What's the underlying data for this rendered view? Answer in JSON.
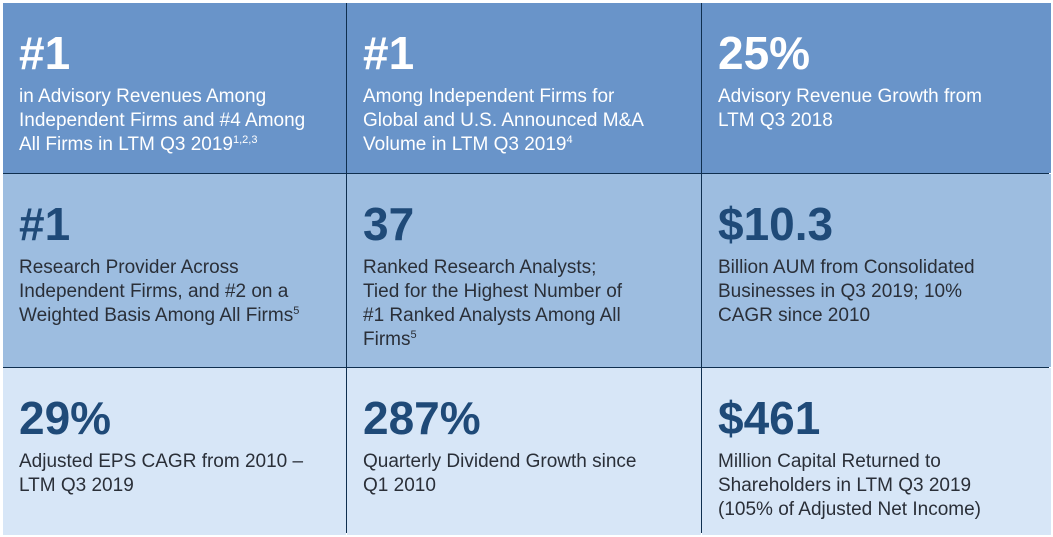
{
  "cells": [
    {
      "big": "#1",
      "desc": "in Advisory Revenues Among\nIndependent Firms and #4 Among\nAll Firms in LTM Q3 2019",
      "sup": "1,2,3"
    },
    {
      "big": "#1",
      "desc": "Among Independent Firms for\nGlobal and U.S. Announced M&A\nVolume in LTM Q3 2019",
      "sup": "4"
    },
    {
      "big": "25%",
      "desc": "Advisory Revenue Growth from\nLTM Q3 2018",
      "sup": ""
    },
    {
      "big": "#1",
      "desc": "Research Provider Across\nIndependent Firms, and #2 on a\nWeighted Basis Among All Firms",
      "sup": "5"
    },
    {
      "big": "37",
      "desc": "Ranked Research Analysts;\nTied for the Highest Number of\n#1 Ranked Analysts Among All\nFirms",
      "sup": "5"
    },
    {
      "big": "$10.3",
      "desc": "Billion AUM from Consolidated\nBusinesses in Q3 2019; 10%\nCAGR since 2010",
      "sup": ""
    },
    {
      "big": "29%",
      "desc": "Adjusted EPS CAGR from 2010 –\nLTM Q3 2019",
      "sup": ""
    },
    {
      "big": "287%",
      "desc": "Quarterly Dividend Growth since\nQ1 2010",
      "sup": ""
    },
    {
      "big": "$461",
      "desc": "Million Capital Returned to\nShareholders in LTM Q3 2019\n(105% of Adjusted Net Income)",
      "sup": ""
    }
  ]
}
